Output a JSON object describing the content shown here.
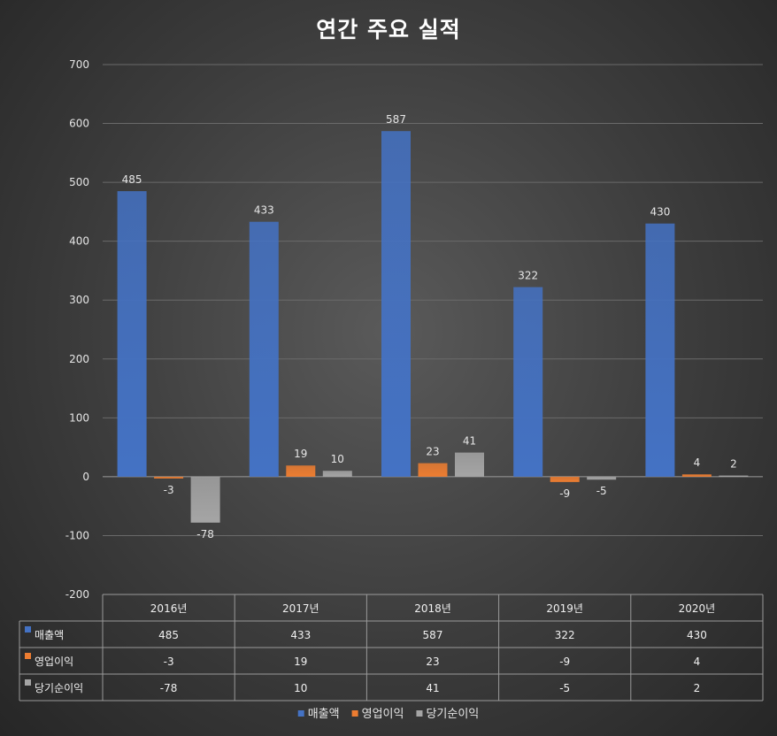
{
  "chart_data": {
    "type": "bar",
    "title": "연간 주요 실적",
    "categories": [
      "2016년",
      "2017년",
      "2018년",
      "2019년",
      "2020년"
    ],
    "series": [
      {
        "name": "매출액",
        "values": [
          485,
          433,
          587,
          322,
          430
        ],
        "color": "#4472c4"
      },
      {
        "name": "영업이익",
        "values": [
          -3,
          19,
          23,
          -9,
          4
        ],
        "color": "#ed7d31"
      },
      {
        "name": "당기순이익",
        "values": [
          -78,
          10,
          41,
          -5,
          2
        ],
        "color": "#a5a5a5"
      }
    ],
    "ylim": [
      -200,
      700
    ],
    "yticks": [
      -200,
      -100,
      0,
      100,
      200,
      300,
      400,
      500,
      600,
      700
    ],
    "grid": true,
    "data_table": true,
    "legend_position": "bottom"
  }
}
